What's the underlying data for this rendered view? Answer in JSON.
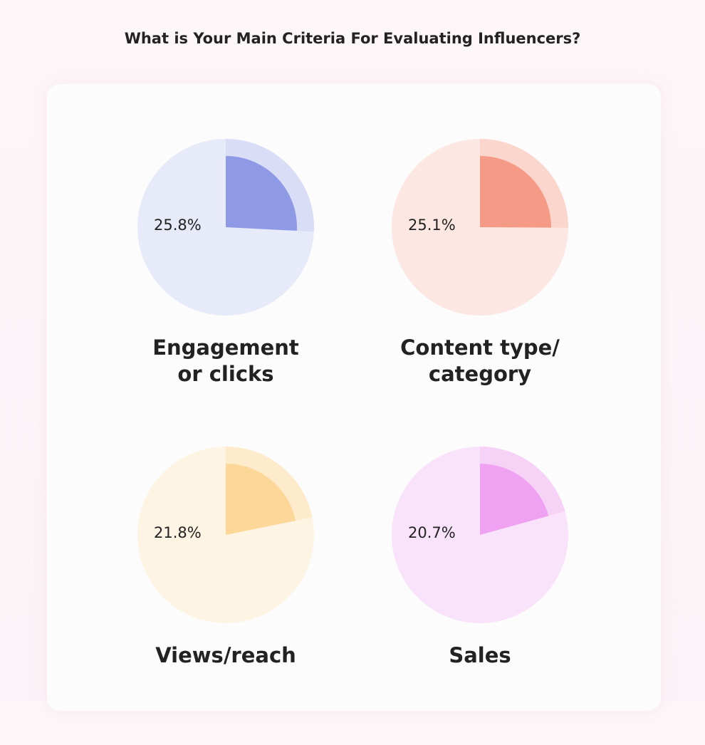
{
  "title": "What is Your Main Criteria For Evaluating Influencers?",
  "chart_data": {
    "type": "pie",
    "title": "What is Your Main Criteria For Evaluating Influencers?",
    "charts": [
      {
        "label": "Engagement or clicks",
        "label_lines": [
          "Engagement",
          "or clicks"
        ],
        "value": 25.8,
        "value_label": "25.8%",
        "fill": "#8f9ae6",
        "track": "#e7eaf8",
        "band": "#d9def6"
      },
      {
        "label": "Content type/ category",
        "label_lines": [
          "Content type/",
          "category"
        ],
        "value": 25.1,
        "value_label": "25.1%",
        "fill": "#f59a86",
        "track": "#fce7e2",
        "band": "#fbd6cd"
      },
      {
        "label": "Views/reach",
        "label_lines": [
          "Views/reach"
        ],
        "value": 21.8,
        "value_label": "21.8%",
        "fill": "#fcd797",
        "track": "#fdf4e4",
        "band": "#fdebcc"
      },
      {
        "label": "Sales",
        "label_lines": [
          "Sales"
        ],
        "value": 20.7,
        "value_label": "20.7%",
        "fill": "#f0a2f2",
        "track": "#f9e3fa",
        "band": "#f5d2f6"
      }
    ]
  }
}
